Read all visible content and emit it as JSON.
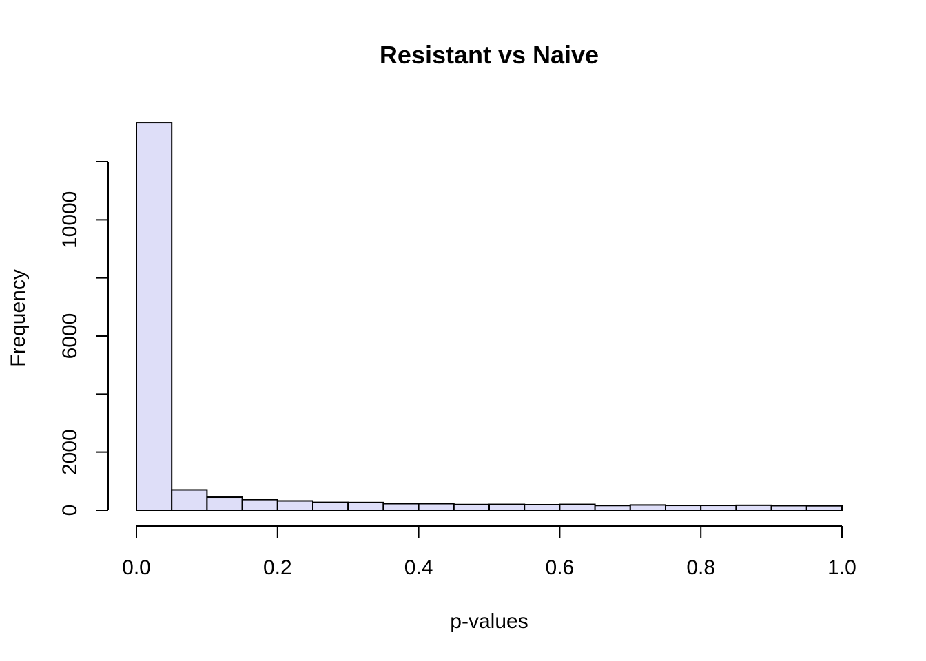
{
  "chart_data": {
    "type": "bar",
    "title": "Resistant vs Naive",
    "xlabel": "p-values",
    "ylabel": "Frequency",
    "bin_edges": [
      0.0,
      0.05,
      0.1,
      0.15,
      0.2,
      0.25,
      0.3,
      0.35,
      0.4,
      0.45,
      0.5,
      0.55,
      0.6,
      0.65,
      0.7,
      0.75,
      0.8,
      0.85,
      0.9,
      0.95,
      1.0
    ],
    "values": [
      13350,
      700,
      450,
      365,
      320,
      270,
      265,
      225,
      225,
      195,
      200,
      190,
      200,
      160,
      180,
      165,
      165,
      170,
      155,
      150
    ],
    "xlim": [
      0.0,
      1.0
    ],
    "ylim": [
      0,
      12000
    ],
    "x_ticks": [
      0.0,
      0.2,
      0.4,
      0.6,
      0.8,
      1.0
    ],
    "x_tick_labels": [
      "0.0",
      "0.2",
      "0.4",
      "0.6",
      "0.8",
      "1.0"
    ],
    "y_ticks": [
      0,
      2000,
      4000,
      6000,
      8000,
      10000,
      12000
    ],
    "y_tick_labels": [
      "0",
      "2000",
      "",
      "6000",
      "",
      "10000",
      ""
    ],
    "bar_color": "#dedef8",
    "grid": false
  }
}
